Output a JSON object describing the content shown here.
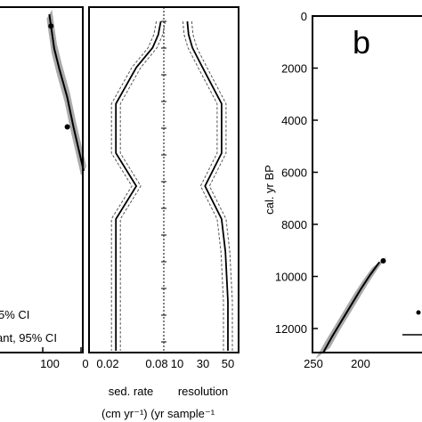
{
  "chart_data": [
    {
      "type": "line",
      "panel": "left-cropped",
      "x_ticks": [
        "100",
        "0"
      ],
      "legend": [
        "5% CI",
        "ant, 95% CI"
      ],
      "series": [
        {
          "x": [
            0,
            25,
            40,
            60,
            72,
            84
          ],
          "y": [
            1600,
            1150,
            850,
            550,
            350,
            0
          ]
        }
      ],
      "points": [
        {
          "x": 40,
          "y": 1150
        },
        {
          "x": 80,
          "y": 120
        }
      ],
      "band_color": "#aaaaaa",
      "line_color": "#000000"
    },
    {
      "type": "line",
      "panel": "middle",
      "x_ticks": [
        "0.02",
        "0.08",
        "10",
        "30",
        "50"
      ],
      "xlabel_line1": [
        "sed. rate",
        "resolution"
      ],
      "xlabel_line2": "(cm yr⁻¹) (yr sample⁻¹",
      "sed_rate": {
        "y": [
          0,
          4,
          8,
          14,
          25,
          40,
          50,
          60,
          70,
          85,
          100
        ],
        "x": [
          0.085,
          0.082,
          0.075,
          0.055,
          0.03,
          0.03,
          0.055,
          0.03,
          0.03,
          0.03,
          0.03
        ]
      },
      "resolution": {
        "y": [
          0,
          4,
          8,
          14,
          25,
          40,
          50,
          60,
          70,
          85,
          100
        ],
        "x": [
          18,
          19,
          22,
          30,
          45,
          45,
          32,
          45,
          48,
          50,
          50
        ]
      }
    },
    {
      "type": "line",
      "panel": "b",
      "panel_label": "b",
      "ylabel": "cal. yr BP",
      "y_ticks": [
        "0",
        "2000",
        "4000",
        "6000",
        "8000",
        "10000",
        "12000"
      ],
      "x_ticks": [
        "250",
        "200"
      ],
      "ylim": [
        0,
        13000
      ],
      "xlim": [
        250,
        172
      ],
      "series": [
        {
          "x": [
            240,
            230,
            220,
            210,
            200,
            190,
            180
          ],
          "y": [
            12950,
            12300,
            11700,
            11100,
            10500,
            9950,
            9450
          ]
        }
      ],
      "points": [
        {
          "x": 176,
          "y": 9400
        }
      ],
      "band_color": "#aaaaaa",
      "line_color": "#000000"
    }
  ]
}
